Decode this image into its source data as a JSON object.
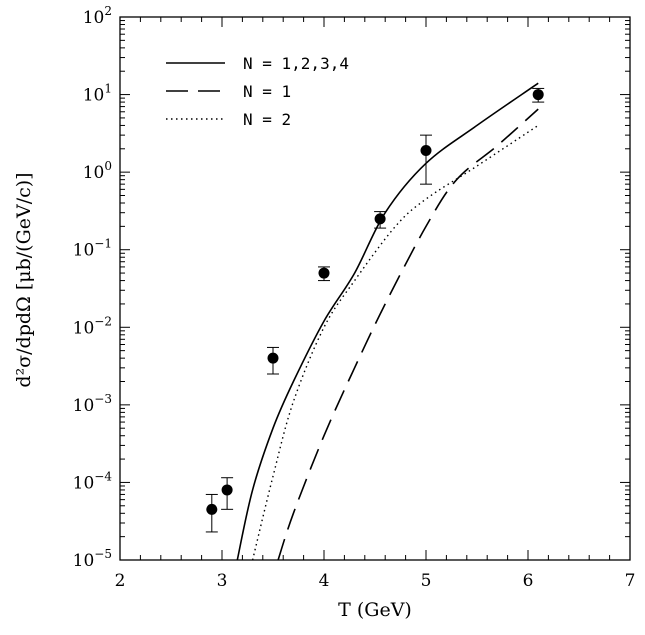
{
  "chart_data": {
    "type": "line",
    "title": "",
    "xlabel": "T (GeV)",
    "ylabel": "d²σ/dpdΩ [μb/(GeV/c)]",
    "xlim": [
      2,
      7
    ],
    "ylim": [
      1e-05,
      100
    ],
    "yscale": "log",
    "x_ticks": [
      {
        "value": 2,
        "label": "2"
      },
      {
        "value": 3,
        "label": "3"
      },
      {
        "value": 4,
        "label": "4"
      },
      {
        "value": 5,
        "label": "5"
      },
      {
        "value": 6,
        "label": "6"
      },
      {
        "value": 7,
        "label": "7"
      }
    ],
    "y_ticks": [
      {
        "value": 1e-05,
        "base": "10",
        "exp": "−5"
      },
      {
        "value": 0.0001,
        "base": "10",
        "exp": "−4"
      },
      {
        "value": 0.001,
        "base": "10",
        "exp": "−3"
      },
      {
        "value": 0.01,
        "base": "10",
        "exp": "−2"
      },
      {
        "value": 0.1,
        "base": "10",
        "exp": "−1"
      },
      {
        "value": 1,
        "base": "10",
        "exp": "0"
      },
      {
        "value": 10,
        "base": "10",
        "exp": "1"
      },
      {
        "value": 100,
        "base": "10",
        "exp": "2"
      }
    ],
    "legend_position": "top-left",
    "series": [
      {
        "name": "N = 1,2,3,4",
        "style": "solid",
        "color": "#000000",
        "x": [
          3.15,
          3.3,
          3.5,
          3.7,
          4.0,
          4.3,
          4.6,
          5.0,
          5.5,
          6.1
        ],
        "y": [
          1e-05,
          8e-05,
          0.0005,
          0.002,
          0.012,
          0.05,
          0.3,
          1.3,
          4.0,
          14
        ]
      },
      {
        "name": "N = 1",
        "style": "dashed",
        "color": "#000000",
        "x": [
          3.55,
          3.7,
          4.0,
          4.3,
          4.6,
          5.0,
          5.3,
          5.7,
          6.1
        ],
        "y": [
          1e-05,
          4e-05,
          0.0004,
          0.003,
          0.02,
          0.2,
          0.8,
          2.2,
          6.5
        ]
      },
      {
        "name": "N = 2",
        "style": "dotted",
        "color": "#000000",
        "x": [
          3.3,
          3.5,
          3.7,
          4.0,
          4.3,
          4.7,
          5.0,
          5.5,
          6.1
        ],
        "y": [
          1e-05,
          0.00012,
          0.0011,
          0.01,
          0.04,
          0.2,
          0.45,
          1.2,
          4.0
        ]
      }
    ],
    "points": {
      "name": "data",
      "marker": "filled-circle",
      "x": [
        2.9,
        3.05,
        3.5,
        4.0,
        4.55,
        5.0,
        6.1
      ],
      "y": [
        4.5e-05,
        8e-05,
        0.004,
        0.05,
        0.25,
        1.9,
        10
      ],
      "y_low": [
        2.3e-05,
        4.5e-05,
        0.0025,
        0.04,
        0.19,
        0.7,
        8
      ],
      "y_high": [
        7e-05,
        0.000115,
        0.0055,
        0.06,
        0.31,
        3.0,
        12
      ]
    }
  }
}
